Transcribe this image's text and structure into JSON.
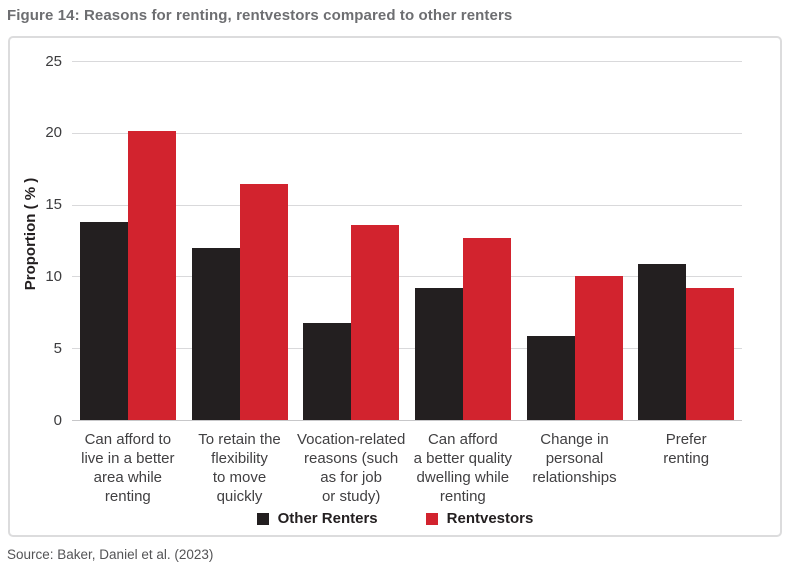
{
  "chart_data": {
    "type": "bar",
    "title": "Figure 14: Reasons for renting, rentvestors compared to other renters",
    "categories": [
      "Can afford to\nlive in a better\narea while\nrenting",
      "To retain the\nflexibility\nto move\nquickly",
      "Vocation-related\nreasons (such\nas for job\nor study)",
      "Can afford\na better quality\ndwelling while\nrenting",
      "Change in\npersonal\nrelationships",
      "Prefer\nrenting"
    ],
    "series": [
      {
        "name": "Other Renters",
        "color": "#231f20",
        "values": [
          13.8,
          12.0,
          6.8,
          9.2,
          5.9,
          10.9
        ]
      },
      {
        "name": "Rentvestors",
        "color": "#d2232e",
        "values": [
          20.2,
          16.5,
          13.6,
          12.7,
          10.1,
          9.2
        ]
      }
    ],
    "xlabel": "",
    "ylabel": "Proportion ( % )",
    "ylim": [
      0,
      25
    ],
    "yticks": [
      0,
      5,
      10,
      15,
      20,
      25
    ],
    "grid": true,
    "legend_position": "bottom"
  },
  "source": {
    "text": "Source: Baker, Daniel et al. (2023)"
  }
}
